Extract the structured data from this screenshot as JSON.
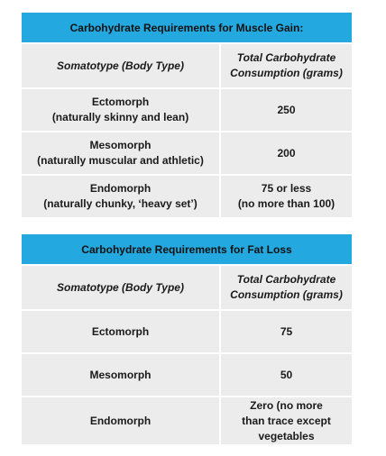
{
  "tables": [
    {
      "title": "Carbohydrate Requirements for Muscle Gain:",
      "col_left": "Somatotype (Body Type)",
      "col_right_line1": "Total Carbohydrate",
      "col_right_line2": "Consumption (grams)",
      "rows": [
        {
          "type": "Ectomorph",
          "desc": "(naturally skinny and lean)",
          "value1": "250",
          "value2": ""
        },
        {
          "type": "Mesomorph",
          "desc": "(naturally muscular and athletic)",
          "value1": "200",
          "value2": ""
        },
        {
          "type": "Endomorph",
          "desc": "(naturally chunky, ‘heavy set’)",
          "value1": "75 or less",
          "value2": "(no more than 100)"
        }
      ]
    },
    {
      "title": "Carbohydrate Requirements for Fat Loss",
      "col_left": "Somatotype (Body Type)",
      "col_right_line1": "Total Carbohydrate",
      "col_right_line2": "Consumption (grams)",
      "rows": [
        {
          "type": "Ectomorph",
          "value": "75"
        },
        {
          "type": "Mesomorph",
          "value": "50"
        },
        {
          "type": "Endomorph",
          "value_line1": "Zero (no more",
          "value_line2": "than trace except",
          "value_line3": "vegetables"
        }
      ]
    }
  ],
  "colors": {
    "header_bg": "#23a8df",
    "row_bg": "#ececec"
  }
}
